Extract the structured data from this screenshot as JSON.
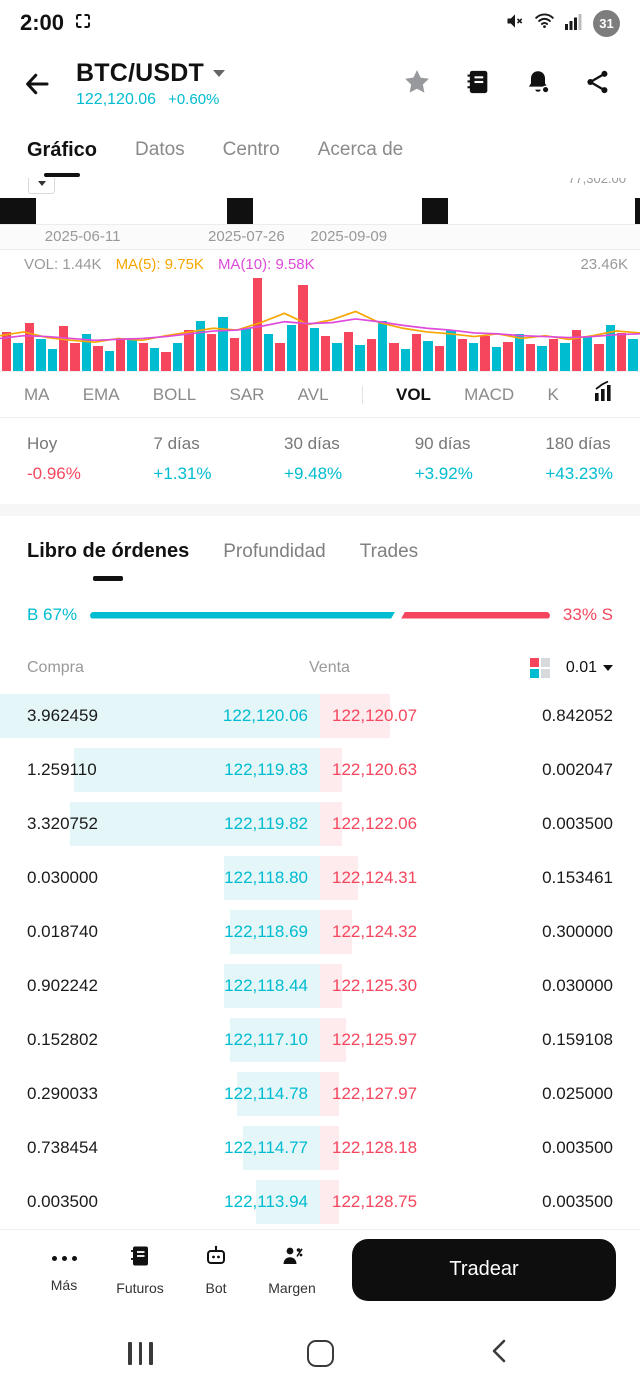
{
  "colors": {
    "buy": "#00bcd0",
    "sell": "#f5465d",
    "buy_bg": "#e4f6f8",
    "sell_bg": "#fdebee",
    "ma5": "#f7a600",
    "ma10": "#de4ada"
  },
  "status_bar": {
    "time": "2:00",
    "battery": "31"
  },
  "header": {
    "pair": "BTC/USDT",
    "price": "122,120.06",
    "change": "+0.60%"
  },
  "tabs": {
    "items": [
      "Gráfico",
      "Datos",
      "Centro",
      "Acerca de"
    ],
    "active": "Gráfico"
  },
  "chart": {
    "clipped_price_label": "77,302.00",
    "date_axis": [
      "2025-06-11",
      "2025-07-26",
      "2025-09-09"
    ],
    "vol_label": "VOL: 1.44K",
    "ma5_label": "MA(5): 9.75K",
    "ma10_label": "MA(10): 9.58K",
    "scale_label": "23.46K"
  },
  "chart_data": {
    "type": "bar",
    "title": "BTC/USDT volume pane (VOL)",
    "ylabel": "Volume",
    "ylim_label": "23.46K",
    "volume_bars": [
      {
        "h": 0.42,
        "s": "d"
      },
      {
        "h": 0.3,
        "s": "u"
      },
      {
        "h": 0.52,
        "s": "d"
      },
      {
        "h": 0.34,
        "s": "u"
      },
      {
        "h": 0.24,
        "s": "u"
      },
      {
        "h": 0.48,
        "s": "d"
      },
      {
        "h": 0.3,
        "s": "d"
      },
      {
        "h": 0.4,
        "s": "u"
      },
      {
        "h": 0.27,
        "s": "d"
      },
      {
        "h": 0.22,
        "s": "u"
      },
      {
        "h": 0.34,
        "s": "d"
      },
      {
        "h": 0.36,
        "s": "u"
      },
      {
        "h": 0.3,
        "s": "d"
      },
      {
        "h": 0.25,
        "s": "u"
      },
      {
        "h": 0.2,
        "s": "d"
      },
      {
        "h": 0.3,
        "s": "u"
      },
      {
        "h": 0.44,
        "s": "d"
      },
      {
        "h": 0.54,
        "s": "u"
      },
      {
        "h": 0.4,
        "s": "d"
      },
      {
        "h": 0.58,
        "s": "u"
      },
      {
        "h": 0.36,
        "s": "d"
      },
      {
        "h": 0.46,
        "s": "u"
      },
      {
        "h": 1.0,
        "s": "d"
      },
      {
        "h": 0.4,
        "s": "u"
      },
      {
        "h": 0.3,
        "s": "d"
      },
      {
        "h": 0.5,
        "s": "u"
      },
      {
        "h": 0.92,
        "s": "d"
      },
      {
        "h": 0.46,
        "s": "u"
      },
      {
        "h": 0.38,
        "s": "d"
      },
      {
        "h": 0.3,
        "s": "u"
      },
      {
        "h": 0.42,
        "s": "d"
      },
      {
        "h": 0.28,
        "s": "u"
      },
      {
        "h": 0.34,
        "s": "d"
      },
      {
        "h": 0.54,
        "s": "u"
      },
      {
        "h": 0.3,
        "s": "d"
      },
      {
        "h": 0.24,
        "s": "u"
      },
      {
        "h": 0.4,
        "s": "d"
      },
      {
        "h": 0.32,
        "s": "u"
      },
      {
        "h": 0.27,
        "s": "d"
      },
      {
        "h": 0.44,
        "s": "u"
      },
      {
        "h": 0.34,
        "s": "d"
      },
      {
        "h": 0.3,
        "s": "u"
      },
      {
        "h": 0.38,
        "s": "d"
      },
      {
        "h": 0.26,
        "s": "u"
      },
      {
        "h": 0.31,
        "s": "d"
      },
      {
        "h": 0.4,
        "s": "u"
      },
      {
        "h": 0.29,
        "s": "d"
      },
      {
        "h": 0.27,
        "s": "u"
      },
      {
        "h": 0.34,
        "s": "d"
      },
      {
        "h": 0.3,
        "s": "u"
      },
      {
        "h": 0.44,
        "s": "d"
      },
      {
        "h": 0.37,
        "s": "u"
      },
      {
        "h": 0.29,
        "s": "d"
      },
      {
        "h": 0.49,
        "s": "u"
      },
      {
        "h": 0.41,
        "s": "d"
      },
      {
        "h": 0.34,
        "s": "u"
      }
    ],
    "ma5_rel": [
      0.38,
      0.42,
      0.36,
      0.33,
      0.31,
      0.35,
      0.33,
      0.38,
      0.42,
      0.46,
      0.44,
      0.52,
      0.62,
      0.5,
      0.55,
      0.64,
      0.52,
      0.46,
      0.42,
      0.4,
      0.37,
      0.4,
      0.35,
      0.38,
      0.34,
      0.38,
      0.43,
      0.41
    ],
    "ma10_rel": [
      0.35,
      0.38,
      0.37,
      0.35,
      0.33,
      0.34,
      0.35,
      0.37,
      0.4,
      0.43,
      0.44,
      0.48,
      0.53,
      0.51,
      0.52,
      0.56,
      0.53,
      0.49,
      0.46,
      0.44,
      0.41,
      0.4,
      0.38,
      0.37,
      0.36,
      0.37,
      0.39,
      0.4
    ],
    "series": [
      {
        "name": "MA(5)",
        "current": "9.75K"
      },
      {
        "name": "MA(10)",
        "current": "9.58K"
      },
      {
        "name": "VOL",
        "current": "1.44K"
      }
    ]
  },
  "indicators": {
    "items": [
      "MA",
      "EMA",
      "BOLL",
      "SAR",
      "AVL",
      "VOL",
      "MACD",
      "K"
    ],
    "active": "VOL"
  },
  "stats": [
    {
      "label": "Hoy",
      "value": "-0.96%"
    },
    {
      "label": "7 días",
      "value": "+1.31%"
    },
    {
      "label": "30 días",
      "value": "+9.48%"
    },
    {
      "label": "90 días",
      "value": "+3.92%"
    },
    {
      "label": "180 días",
      "value": "+43.23%"
    }
  ],
  "orderbook": {
    "tabs": [
      "Libro de órdenes",
      "Profundidad",
      "Trades"
    ],
    "active_tab": "Libro de órdenes",
    "buy_pct_label": "B 67%",
    "sell_pct_label": "33% S",
    "buy_pct": 67,
    "sell_pct": 33,
    "col_buy": "Compra",
    "col_sell": "Venta",
    "precision": "0.01",
    "rows": [
      {
        "buy_qty": "3.962459",
        "buy_price": "122,120.06",
        "sell_price": "122,120.07",
        "sell_qty": "0.842052",
        "buy_depth": 100,
        "sell_depth": 22
      },
      {
        "buy_qty": "1.259110",
        "buy_price": "122,119.83",
        "sell_price": "122,120.63",
        "sell_qty": "0.002047",
        "buy_depth": 77,
        "sell_depth": 7
      },
      {
        "buy_qty": "3.320752",
        "buy_price": "122,119.82",
        "sell_price": "122,122.06",
        "sell_qty": "0.003500",
        "buy_depth": 78,
        "sell_depth": 7
      },
      {
        "buy_qty": "0.030000",
        "buy_price": "122,118.80",
        "sell_price": "122,124.31",
        "sell_qty": "0.153461",
        "buy_depth": 30,
        "sell_depth": 12
      },
      {
        "buy_qty": "0.018740",
        "buy_price": "122,118.69",
        "sell_price": "122,124.32",
        "sell_qty": "0.300000",
        "buy_depth": 28,
        "sell_depth": 10
      },
      {
        "buy_qty": "0.902242",
        "buy_price": "122,118.44",
        "sell_price": "122,125.30",
        "sell_qty": "0.030000",
        "buy_depth": 30,
        "sell_depth": 7
      },
      {
        "buy_qty": "0.152802",
        "buy_price": "122,117.10",
        "sell_price": "122,125.97",
        "sell_qty": "0.159108",
        "buy_depth": 28,
        "sell_depth": 8
      },
      {
        "buy_qty": "0.290033",
        "buy_price": "122,114.78",
        "sell_price": "122,127.97",
        "sell_qty": "0.025000",
        "buy_depth": 26,
        "sell_depth": 6
      },
      {
        "buy_qty": "0.738454",
        "buy_price": "122,114.77",
        "sell_price": "122,128.18",
        "sell_qty": "0.003500",
        "buy_depth": 24,
        "sell_depth": 6
      },
      {
        "buy_qty": "0.003500",
        "buy_price": "122,113.94",
        "sell_price": "122,128.75",
        "sell_qty": "0.003500",
        "buy_depth": 20,
        "sell_depth": 6
      }
    ]
  },
  "bottom_bar": {
    "items": [
      {
        "label": "Más"
      },
      {
        "label": "Futuros"
      },
      {
        "label": "Bot"
      },
      {
        "label": "Margen"
      }
    ],
    "trade_button": "Tradear"
  }
}
